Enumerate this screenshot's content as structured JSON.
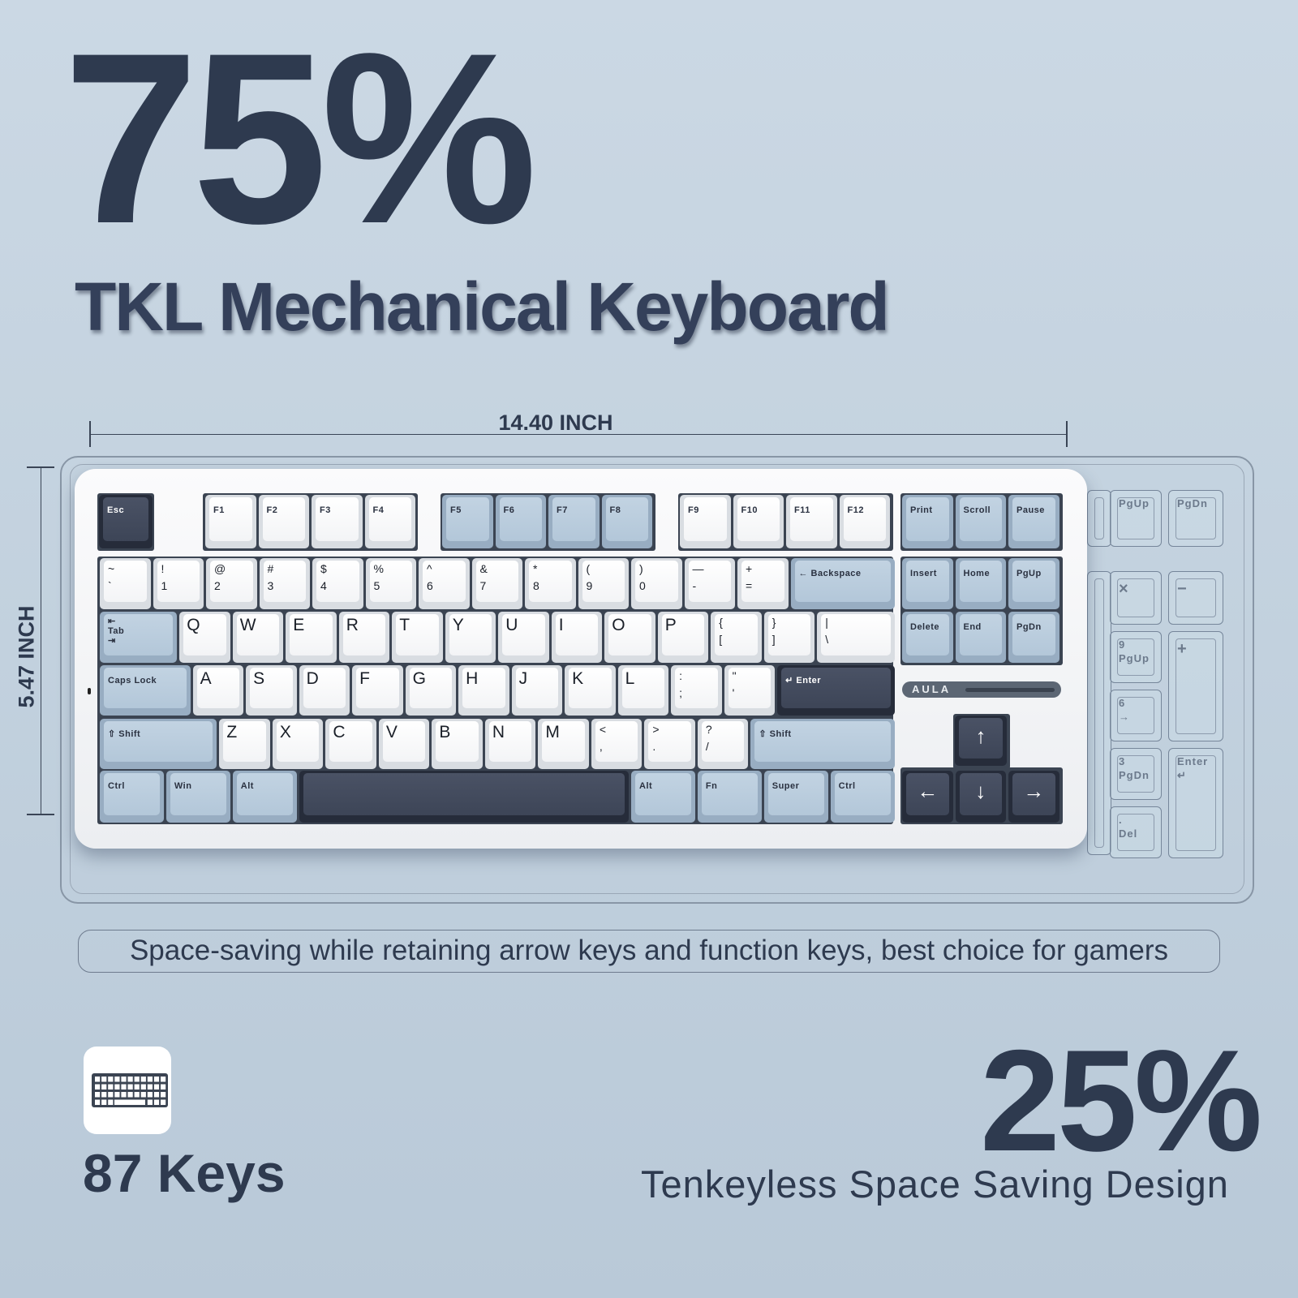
{
  "headline": "75%",
  "subtitle": "TKL Mechanical Keyboard",
  "dimensions": {
    "width": "14.40 INCH",
    "height": "5.47 INCH"
  },
  "brand": "AULA",
  "keyboard": {
    "frow": [
      {
        "l": "Esc",
        "t": "d"
      },
      {
        "l": "F1",
        "t": "w"
      },
      {
        "l": "F2",
        "t": "w"
      },
      {
        "l": "F3",
        "t": "w"
      },
      {
        "l": "F4",
        "t": "w"
      },
      {
        "l": "F5",
        "t": "b"
      },
      {
        "l": "F6",
        "t": "b"
      },
      {
        "l": "F7",
        "t": "b"
      },
      {
        "l": "F8",
        "t": "b"
      },
      {
        "l": "F9",
        "t": "w"
      },
      {
        "l": "F10",
        "t": "w"
      },
      {
        "l": "F11",
        "t": "w"
      },
      {
        "l": "F12",
        "t": "w"
      },
      {
        "l": "Print",
        "t": "b"
      },
      {
        "l": "Scroll",
        "t": "b"
      },
      {
        "l": "Pause",
        "t": "b"
      }
    ],
    "numrow": [
      {
        "l": "~",
        "s": "`",
        "t": "w"
      },
      {
        "l": "!",
        "s": "1",
        "t": "w"
      },
      {
        "l": "@",
        "s": "2",
        "t": "w"
      },
      {
        "l": "#",
        "s": "3",
        "t": "w"
      },
      {
        "l": "$",
        "s": "4",
        "t": "w"
      },
      {
        "l": "%",
        "s": "5",
        "t": "w"
      },
      {
        "l": "^",
        "s": "6",
        "t": "w"
      },
      {
        "l": "&",
        "s": "7",
        "t": "w"
      },
      {
        "l": "*",
        "s": "8",
        "t": "w"
      },
      {
        "l": "(",
        "s": "9",
        "t": "w"
      },
      {
        "l": ")",
        "s": "0",
        "t": "w"
      },
      {
        "l": "—",
        "s": "-",
        "t": "w"
      },
      {
        "l": "+",
        "s": "=",
        "t": "w"
      },
      {
        "l": "← Backspace",
        "t": "b"
      },
      {
        "l": "Insert",
        "t": "b"
      },
      {
        "l": "Home",
        "t": "b"
      },
      {
        "l": "PgUp",
        "t": "b"
      }
    ],
    "tabrow": [
      {
        "l": "⇤\nTab\n⇥",
        "t": "b"
      },
      {
        "l": "Q",
        "t": "w"
      },
      {
        "l": "W",
        "t": "w"
      },
      {
        "l": "E",
        "t": "w"
      },
      {
        "l": "R",
        "t": "w"
      },
      {
        "l": "T",
        "t": "w"
      },
      {
        "l": "Y",
        "t": "w"
      },
      {
        "l": "U",
        "t": "w"
      },
      {
        "l": "I",
        "t": "w"
      },
      {
        "l": "O",
        "t": "w"
      },
      {
        "l": "P",
        "t": "w"
      },
      {
        "l": "{",
        "s": "[",
        "t": "w"
      },
      {
        "l": "}",
        "s": "]",
        "t": "w"
      },
      {
        "l": "|",
        "s": "\\",
        "t": "w"
      },
      {
        "l": "Delete",
        "t": "b"
      },
      {
        "l": "End",
        "t": "b"
      },
      {
        "l": "PgDn",
        "t": "b"
      }
    ],
    "capsrow": [
      {
        "l": "Caps Lock",
        "t": "b"
      },
      {
        "l": "A",
        "t": "w"
      },
      {
        "l": "S",
        "t": "w"
      },
      {
        "l": "D",
        "t": "w"
      },
      {
        "l": "F",
        "t": "w"
      },
      {
        "l": "G",
        "t": "w"
      },
      {
        "l": "H",
        "t": "w"
      },
      {
        "l": "J",
        "t": "w"
      },
      {
        "l": "K",
        "t": "w"
      },
      {
        "l": "L",
        "t": "w"
      },
      {
        "l": ":",
        "s": ";",
        "t": "w"
      },
      {
        "l": "\"",
        "s": "'",
        "t": "w"
      },
      {
        "l": "↵ Enter",
        "t": "d"
      }
    ],
    "shiftrow": [
      {
        "l": "⇧ Shift",
        "t": "b"
      },
      {
        "l": "Z",
        "t": "w"
      },
      {
        "l": "X",
        "t": "w"
      },
      {
        "l": "C",
        "t": "w"
      },
      {
        "l": "V",
        "t": "w"
      },
      {
        "l": "B",
        "t": "w"
      },
      {
        "l": "N",
        "t": "w"
      },
      {
        "l": "M",
        "t": "w"
      },
      {
        "l": "<",
        "s": ",",
        "t": "w"
      },
      {
        "l": ">",
        "s": ".",
        "t": "w"
      },
      {
        "l": "?",
        "s": "/",
        "t": "w"
      },
      {
        "l": "⇧ Shift",
        "t": "b"
      },
      {
        "l": "↑",
        "t": "d"
      }
    ],
    "bottomrow": [
      {
        "l": "Ctrl",
        "t": "b"
      },
      {
        "l": "Win",
        "t": "b"
      },
      {
        "l": "Alt",
        "t": "b"
      },
      {
        "l": "",
        "t": "d"
      },
      {
        "l": "Alt",
        "t": "b"
      },
      {
        "l": "Fn",
        "t": "b"
      },
      {
        "l": "Super",
        "t": "b"
      },
      {
        "l": "Ctrl",
        "t": "b"
      },
      {
        "l": "←",
        "t": "d"
      },
      {
        "l": "↓",
        "t": "d"
      },
      {
        "l": "→",
        "t": "d"
      }
    ]
  },
  "numpad_outline": [
    "PgUp",
    "PgDn",
    "×",
    "−",
    "9\nPgUp",
    "+",
    "6\n→",
    "3\nPgDn",
    "Enter\n↵",
    ".\nDel"
  ],
  "caption": "Space-saving while retaining arrow keys and function keys, best choice for gamers",
  "keys_count": "87 Keys",
  "saving_percent": "25%",
  "saving_text": "Tenkeyless Space Saving Design",
  "colors": {
    "text": "#2e3a4f",
    "blue_key": "#b8cbdc",
    "dark_key": "#3d4557",
    "white_key": "#f7f8f9"
  }
}
